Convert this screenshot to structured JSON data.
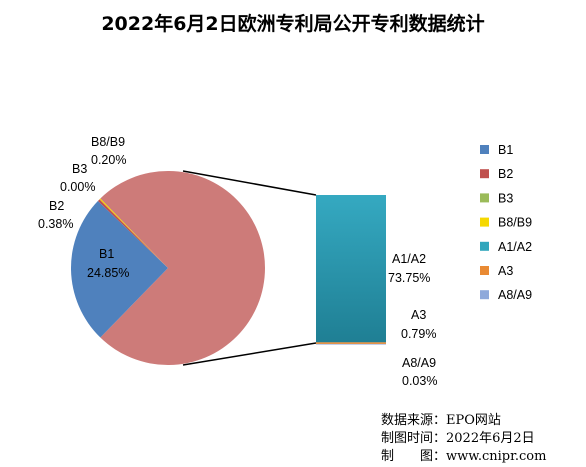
{
  "chart_data": {
    "type": "pie",
    "title": "2022年6月2日欧洲专利局公开专利数据统计",
    "pie": [
      {
        "name": "B1",
        "value": 24.85,
        "label": "24.85%",
        "color": "#4f81bd"
      },
      {
        "name": "B2",
        "value": 0.38,
        "label": "0.38%",
        "color": "#c0504d"
      },
      {
        "name": "B3",
        "value": 0.0,
        "label": "0.00%",
        "color": "#9bbb59"
      },
      {
        "name": "B8/B9",
        "value": 0.2,
        "label": "0.20%",
        "color": "#f5d800"
      },
      {
        "name": "A1/A2",
        "value": 73.75,
        "label": "73.75%",
        "color": "#31a6bc"
      },
      {
        "name": "A3",
        "value": 0.79,
        "label": "0.79%",
        "color": "#e98a33"
      },
      {
        "name": "A8/A9",
        "value": 0.03,
        "label": "0.03%",
        "color": "#8ea9db"
      }
    ],
    "combined_slice_color": "#cd7b79",
    "legend": [
      {
        "name": "B1",
        "color": "#4f81bd"
      },
      {
        "name": "B2",
        "color": "#c0504d"
      },
      {
        "name": "B3",
        "color": "#9bbb59"
      },
      {
        "name": "B8/B9",
        "color": "#f5d800"
      },
      {
        "name": "A1/A2",
        "color": "#31a6bc"
      },
      {
        "name": "A3",
        "color": "#e98a33"
      },
      {
        "name": "A8/A9",
        "color": "#8ea9db"
      }
    ],
    "legend_position": "right"
  },
  "source": {
    "line1": "数据来源：EPO网站",
    "line2": "制图时间：2022年6月2日",
    "line3": "制　　图：www.cnipr.com"
  }
}
